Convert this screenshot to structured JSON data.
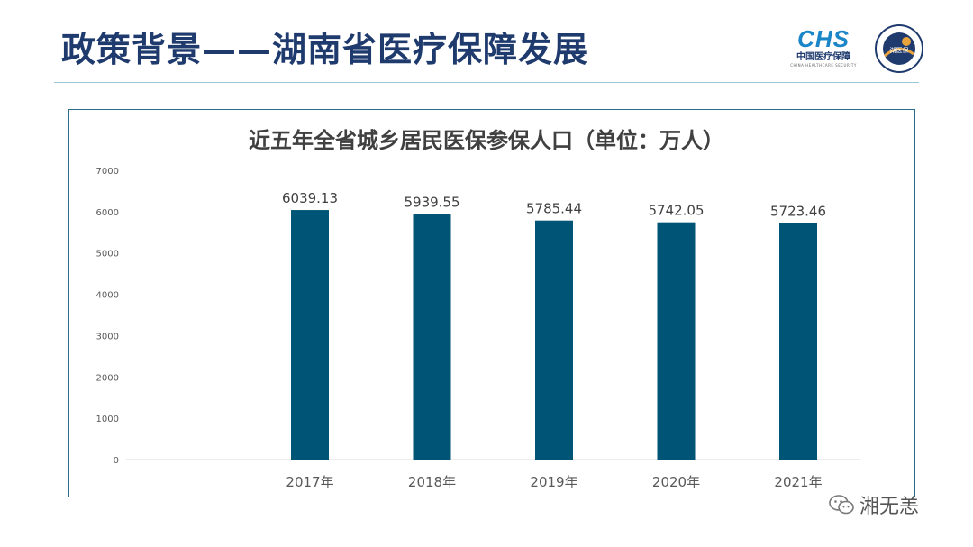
{
  "header": {
    "title": "政策背景——湖南省医疗保障发展",
    "logo_chs": {
      "mark": "CHS",
      "cn": "中国医疗保障",
      "en": "CHINA HEALTHCARE SECURITY"
    },
    "logo_seal": {
      "text": "湖医保"
    }
  },
  "watermark": {
    "text": "湘无恙",
    "icon": "wechat-icon"
  },
  "colors": {
    "bar": "#005475",
    "title": "#1f3b6e",
    "accent": "#1a86c8"
  },
  "chart_data": {
    "type": "bar",
    "title": "近五年全省城乡居民医保参保人口（单位：万人）",
    "categories": [
      "2017年",
      "2018年",
      "2019年",
      "2020年",
      "2021年"
    ],
    "values": [
      6039.13,
      5939.55,
      5785.44,
      5742.05,
      5723.46
    ],
    "value_labels": [
      "6039.13",
      "5939.55",
      "5785.44",
      "5742.05",
      "5723.46"
    ],
    "yticks": [
      "0",
      "1000",
      "2000",
      "3000",
      "4000",
      "5000",
      "6000",
      "7000"
    ],
    "ylim": [
      0,
      7000
    ],
    "grid": false,
    "legend": "none"
  }
}
